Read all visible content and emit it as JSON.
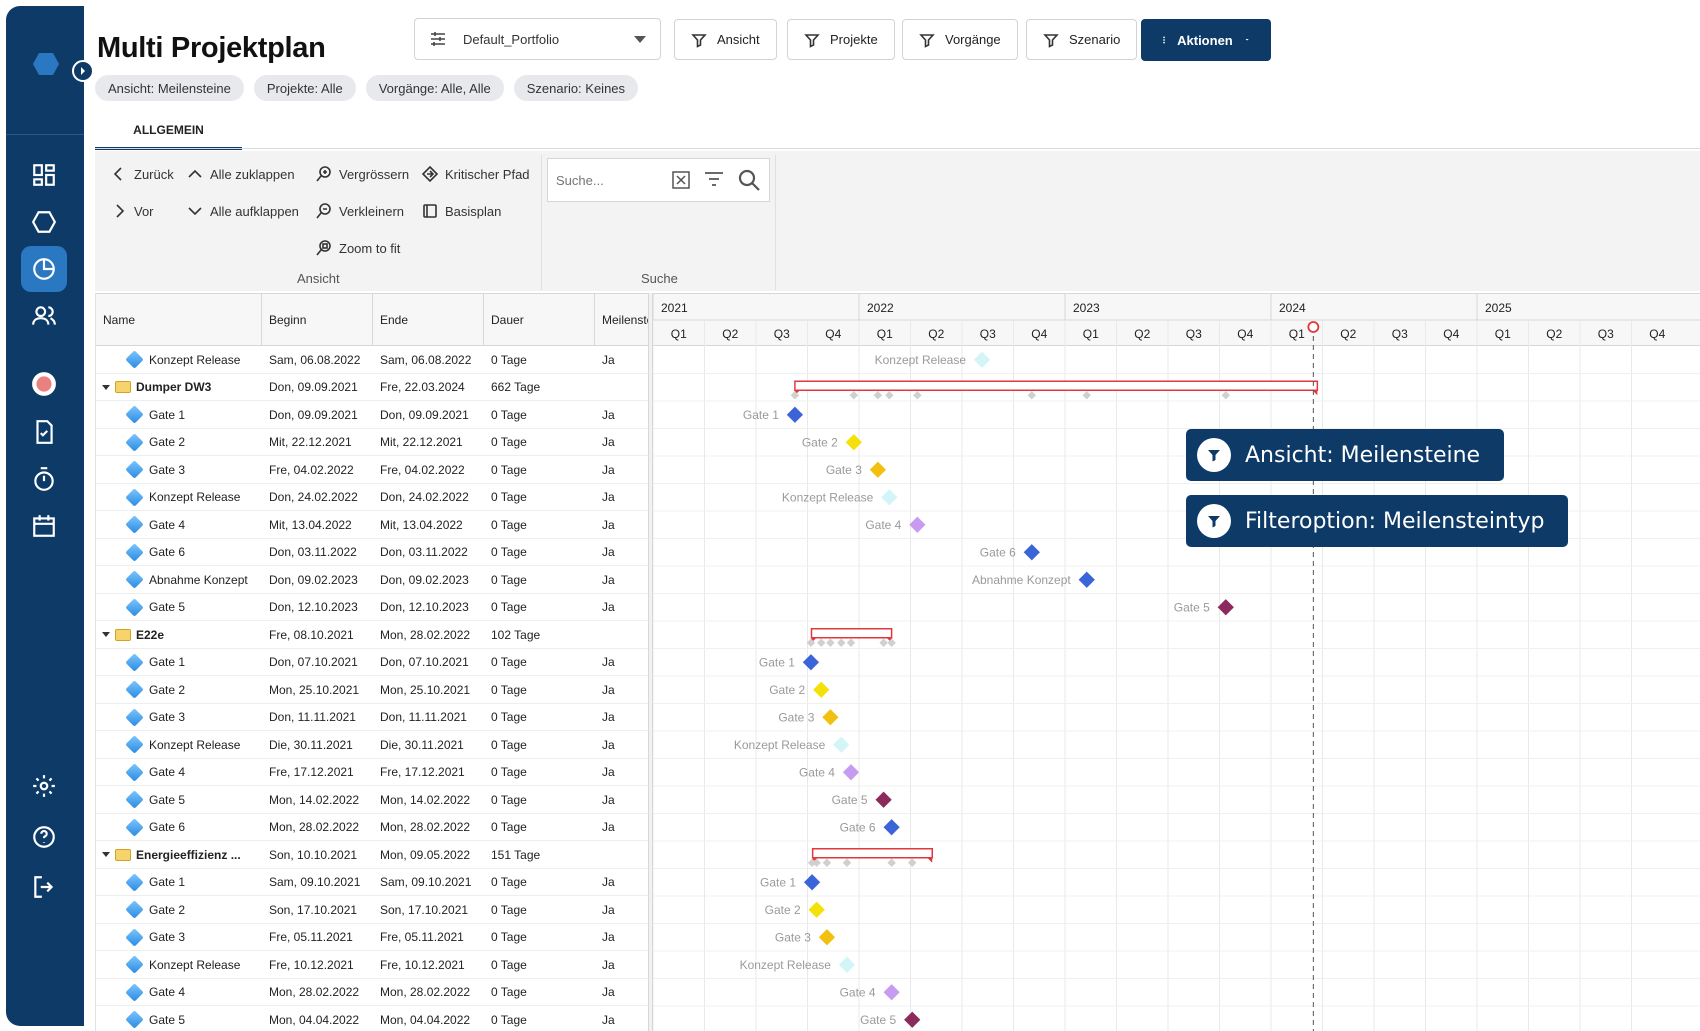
{
  "page": {
    "title": "Multi Projektplan"
  },
  "header": {
    "portfolio": "Default_Portfolio",
    "buttons": {
      "ansicht": "Ansicht",
      "projekte": "Projekte",
      "vorgaenge": "Vorgänge",
      "szenario": "Szenario",
      "aktionen": "Aktionen"
    },
    "chips": [
      "Ansicht: Meilensteine",
      "Projekte: Alle",
      "Vorgänge: Alle, Alle",
      "Szenario: Keines"
    ]
  },
  "tabs": [
    "ALLGEMEIN"
  ],
  "ribbon": {
    "zurueck": "Zurück",
    "vor": "Vor",
    "alle_zuklappen": "Alle zuklappen",
    "alle_aufklappen": "Alle aufklappen",
    "vergroessern": "Vergrössern",
    "verkleinern": "Verkleinern",
    "zoom_to_fit": "Zoom to fit",
    "kritischer_pfad": "Kritischer Pfad",
    "basisplan": "Basisplan",
    "group_ansicht": "Ansicht",
    "group_suche": "Suche",
    "search_placeholder": "Suche..."
  },
  "grid": {
    "columns": [
      "Name",
      "Beginn",
      "Ende",
      "Dauer",
      "Meilenste"
    ],
    "rows": [
      {
        "type": "milestone",
        "name": "Konzept Release",
        "beginn": "Sam, 06.08.2022",
        "ende": "Sam, 06.08.2022",
        "dauer": "0 Tage",
        "ms": "Ja"
      },
      {
        "type": "summary",
        "name": "Dumper DW3",
        "beginn": "Don, 09.09.2021",
        "ende": "Fre, 22.03.2024",
        "dauer": "662 Tage",
        "ms": ""
      },
      {
        "type": "milestone",
        "name": "Gate 1",
        "beginn": "Don, 09.09.2021",
        "ende": "Don, 09.09.2021",
        "dauer": "0 Tage",
        "ms": "Ja"
      },
      {
        "type": "milestone",
        "name": "Gate 2",
        "beginn": "Mit, 22.12.2021",
        "ende": "Mit, 22.12.2021",
        "dauer": "0 Tage",
        "ms": "Ja"
      },
      {
        "type": "milestone",
        "name": "Gate 3",
        "beginn": "Fre, 04.02.2022",
        "ende": "Fre, 04.02.2022",
        "dauer": "0 Tage",
        "ms": "Ja"
      },
      {
        "type": "milestone",
        "name": "Konzept Release",
        "beginn": "Don, 24.02.2022",
        "ende": "Don, 24.02.2022",
        "dauer": "0 Tage",
        "ms": "Ja"
      },
      {
        "type": "milestone",
        "name": "Gate 4",
        "beginn": "Mit, 13.04.2022",
        "ende": "Mit, 13.04.2022",
        "dauer": "0 Tage",
        "ms": "Ja"
      },
      {
        "type": "milestone",
        "name": "Gate 6",
        "beginn": "Don, 03.11.2022",
        "ende": "Don, 03.11.2022",
        "dauer": "0 Tage",
        "ms": "Ja"
      },
      {
        "type": "milestone",
        "name": "Abnahme Konzept",
        "beginn": "Don, 09.02.2023",
        "ende": "Don, 09.02.2023",
        "dauer": "0 Tage",
        "ms": "Ja"
      },
      {
        "type": "milestone",
        "name": "Gate 5",
        "beginn": "Don, 12.10.2023",
        "ende": "Don, 12.10.2023",
        "dauer": "0 Tage",
        "ms": "Ja"
      },
      {
        "type": "summary",
        "name": "E22e",
        "beginn": "Fre, 08.10.2021",
        "ende": "Mon, 28.02.2022",
        "dauer": "102 Tage",
        "ms": ""
      },
      {
        "type": "milestone",
        "name": "Gate 1",
        "beginn": "Don, 07.10.2021",
        "ende": "Don, 07.10.2021",
        "dauer": "0 Tage",
        "ms": "Ja"
      },
      {
        "type": "milestone",
        "name": "Gate 2",
        "beginn": "Mon, 25.10.2021",
        "ende": "Mon, 25.10.2021",
        "dauer": "0 Tage",
        "ms": "Ja"
      },
      {
        "type": "milestone",
        "name": "Gate 3",
        "beginn": "Don, 11.11.2021",
        "ende": "Don, 11.11.2021",
        "dauer": "0 Tage",
        "ms": "Ja"
      },
      {
        "type": "milestone",
        "name": "Konzept Release",
        "beginn": "Die, 30.11.2021",
        "ende": "Die, 30.11.2021",
        "dauer": "0 Tage",
        "ms": "Ja"
      },
      {
        "type": "milestone",
        "name": "Gate 4",
        "beginn": "Fre, 17.12.2021",
        "ende": "Fre, 17.12.2021",
        "dauer": "0 Tage",
        "ms": "Ja"
      },
      {
        "type": "milestone",
        "name": "Gate 5",
        "beginn": "Mon, 14.02.2022",
        "ende": "Mon, 14.02.2022",
        "dauer": "0 Tage",
        "ms": "Ja"
      },
      {
        "type": "milestone",
        "name": "Gate 6",
        "beginn": "Mon, 28.02.2022",
        "ende": "Mon, 28.02.2022",
        "dauer": "0 Tage",
        "ms": "Ja"
      },
      {
        "type": "summary",
        "name": "Energieeffizienz ...",
        "beginn": "Son, 10.10.2021",
        "ende": "Mon, 09.05.2022",
        "dauer": "151 Tage",
        "ms": ""
      },
      {
        "type": "milestone",
        "name": "Gate 1",
        "beginn": "Sam, 09.10.2021",
        "ende": "Sam, 09.10.2021",
        "dauer": "0 Tage",
        "ms": "Ja"
      },
      {
        "type": "milestone",
        "name": "Gate 2",
        "beginn": "Son, 17.10.2021",
        "ende": "Son, 17.10.2021",
        "dauer": "0 Tage",
        "ms": "Ja"
      },
      {
        "type": "milestone",
        "name": "Gate 3",
        "beginn": "Fre, 05.11.2021",
        "ende": "Fre, 05.11.2021",
        "dauer": "0 Tage",
        "ms": "Ja"
      },
      {
        "type": "milestone",
        "name": "Konzept Release",
        "beginn": "Fre, 10.12.2021",
        "ende": "Fre, 10.12.2021",
        "dauer": "0 Tage",
        "ms": "Ja"
      },
      {
        "type": "milestone",
        "name": "Gate 4",
        "beginn": "Mon, 28.02.2022",
        "ende": "Mon, 28.02.2022",
        "dauer": "0 Tage",
        "ms": "Ja"
      },
      {
        "type": "milestone",
        "name": "Gate 5",
        "beginn": "Mon, 04.04.2022",
        "ende": "Mon, 04.04.2022",
        "dauer": "0 Tage",
        "ms": "Ja"
      }
    ]
  },
  "timeline": {
    "years": [
      "2021",
      "2022",
      "2023",
      "2024",
      "2025"
    ],
    "quarters": [
      "Q1",
      "Q2",
      "Q3",
      "Q4"
    ],
    "today_label": "Q1"
  },
  "colors": {
    "sidebar": "#0e3a67",
    "accent": "#2a77c2",
    "milestone_gate1": "#3b64d8",
    "milestone_gate2": "#f5e10a",
    "milestone_gate3": "#f2c10f",
    "milestone_konzept": "#d3f5f8",
    "milestone_gate4": "#c79cf0",
    "milestone_gate5": "#8b2a5d",
    "milestone_gate6": "#3b64d8",
    "summary_bar": "#e0383c"
  },
  "overlays": [
    "Ansicht: Meilensteine",
    "Filteroption: Meilensteintyp"
  ]
}
